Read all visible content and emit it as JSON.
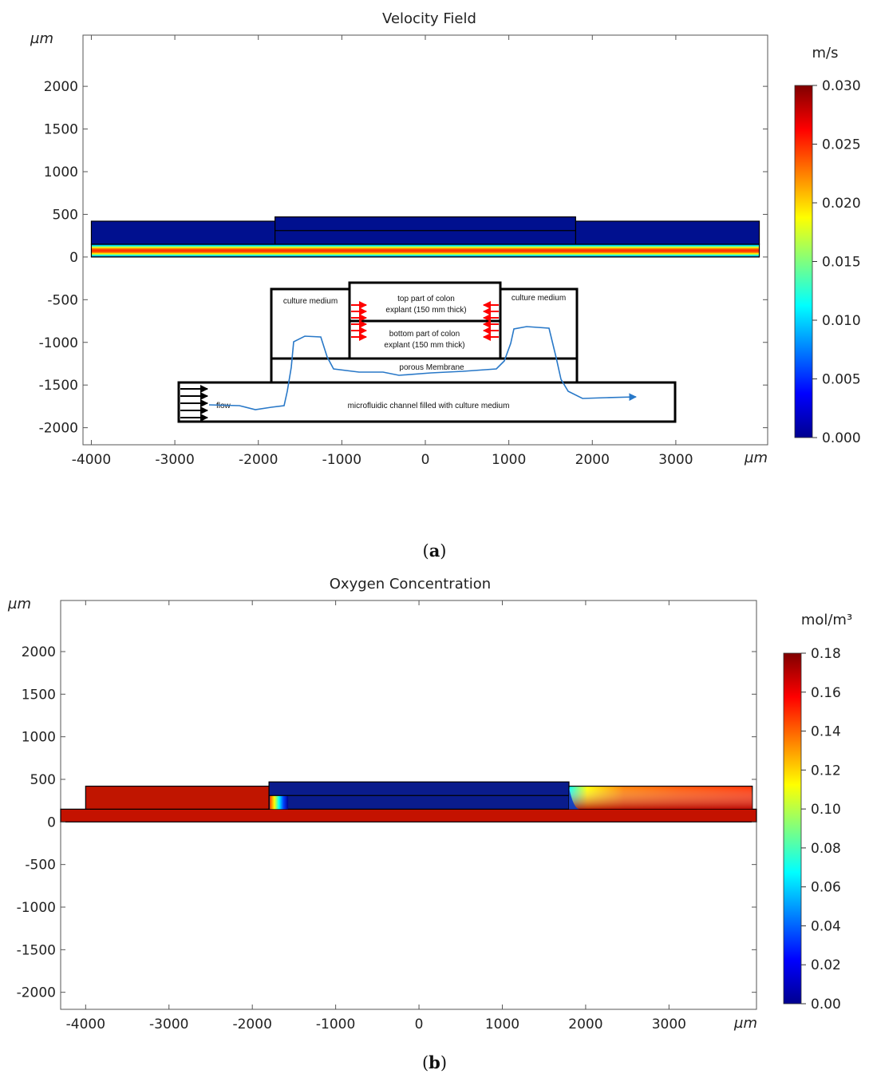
{
  "figure": {
    "caption_a": "a",
    "caption_b": "b"
  },
  "chart_data": [
    {
      "id": "a",
      "type": "heatmap",
      "title": "Velocity Field",
      "axis_unit": "µm",
      "xlim": [
        -4100,
        4100
      ],
      "ylim": [
        -2200,
        2600
      ],
      "xticks": [
        -4000,
        -3000,
        -2000,
        -1000,
        0,
        1000,
        2000,
        3000
      ],
      "yticks": [
        2000,
        1500,
        1000,
        500,
        0,
        -500,
        -1000,
        -1500,
        -2000
      ],
      "colorbar": {
        "unit": "m/s",
        "min": 0.0,
        "max": 0.03,
        "ticks": [
          "0.030",
          "0.025",
          "0.020",
          "0.015",
          "0.010",
          "0.005",
          "0.000"
        ],
        "colormap": "jet"
      },
      "geometry": {
        "left_chamber": [
          -4000,
          -1800,
          150,
          420
        ],
        "right_chamber": [
          1800,
          4000,
          150,
          420
        ],
        "explant": [
          -1800,
          1800,
          150,
          470
        ],
        "explant_divider_y": 310,
        "channel": [
          -4000,
          4000,
          0,
          150
        ]
      },
      "annotations": {
        "culture_medium_left": "culture medium",
        "culture_medium_right": "culture medium",
        "top_part_line1": "top part of colon",
        "top_part_line2": "explant (150 mm thick)",
        "bottom_part_line1": "bottom part of colon",
        "bottom_part_line2": "explant (150 mm thick)",
        "porous_membrane": "porous Membrane",
        "flow": "flow",
        "channel": "microfluidic channel filled with culture medium"
      }
    },
    {
      "id": "b",
      "type": "heatmap",
      "title": "Oxygen Concentration",
      "axis_unit": "µm",
      "xlim": [
        -4300,
        4050
      ],
      "ylim": [
        -2200,
        2600
      ],
      "xticks": [
        -4000,
        -3000,
        -2000,
        -1000,
        0,
        1000,
        2000,
        3000
      ],
      "yticks": [
        2000,
        1500,
        1000,
        500,
        0,
        -500,
        -1000,
        -1500,
        -2000
      ],
      "colorbar": {
        "unit": "mol/m³",
        "min": 0.0,
        "max": 0.18,
        "ticks": [
          "0.18",
          "0.16",
          "0.14",
          "0.12",
          "0.10",
          "0.08",
          "0.06",
          "0.04",
          "0.02",
          "0.00"
        ],
        "colormap": "jet"
      },
      "geometry": {
        "left_chamber": [
          -4000,
          -1800,
          150,
          420
        ],
        "right_chamber": [
          1800,
          4000,
          150,
          420
        ],
        "explant": [
          -1800,
          1800,
          150,
          470
        ],
        "explant_divider_y": 310,
        "channel": [
          -4300,
          4050,
          0,
          150
        ]
      }
    }
  ]
}
